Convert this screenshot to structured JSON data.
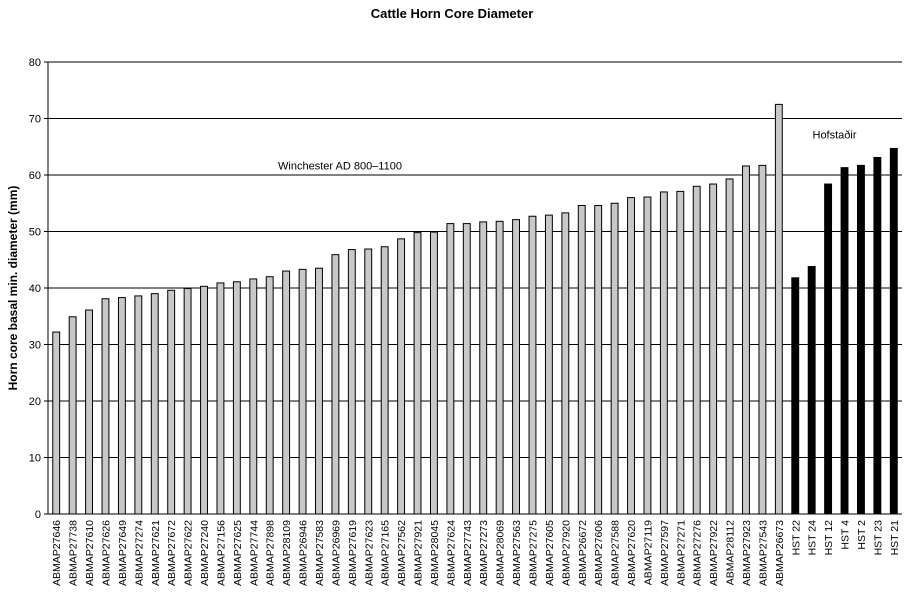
{
  "chart_data": {
    "type": "bar",
    "title": "Cattle Horn Core Diameter",
    "xlabel": "",
    "ylabel": "Horn core basal min. diameter (mm)",
    "ylim": [
      0,
      80
    ],
    "yticks": [
      0,
      10,
      20,
      30,
      40,
      50,
      60,
      70,
      80
    ],
    "grid": true,
    "annotations": [
      {
        "text": "Winchester AD 800–1100"
      },
      {
        "text": "Hofstaðir"
      }
    ],
    "groups": [
      {
        "label": "Winchester AD 800–1100",
        "color": "#c8c8c8",
        "categories": [
          "ABMAP27646",
          "ABMAP27738",
          "ABMAP27610",
          "ABMAP27626",
          "ABMAP27649",
          "ABMAP27274",
          "ABMAP27621",
          "ABMAP27672",
          "ABMAP27622",
          "ABMAP27240",
          "ABMAP27156",
          "ABMAP27625",
          "ABMAP27744",
          "ABMAP27898",
          "ABMAP28109",
          "ABMAP26946",
          "ABMAP27583",
          "ABMAP26969",
          "ABMAP27619",
          "ABMAP27623",
          "ABMAP27165",
          "ABMAP27562",
          "ABMAP27921",
          "ABMAP28045",
          "ABMAP27624",
          "ABMAP27743",
          "ABMAP27273",
          "ABMAP28069",
          "ABMAP27563",
          "ABMAP27275",
          "ABMAP27605",
          "ABMAP27920",
          "ABMAP26672",
          "ABMAP27606",
          "ABMAP27588",
          "ABMAP27620",
          "ABMAP27119",
          "ABMAP27597",
          "ABMAP27271",
          "ABMAP27276",
          "ABMAP27922",
          "ABMAP28112",
          "ABMAP27923",
          "ABMAP27543",
          "ABMAP26673"
        ],
        "values": [
          32.2,
          34.9,
          36.1,
          38.1,
          38.3,
          38.6,
          39.0,
          39.6,
          39.9,
          40.3,
          40.9,
          41.1,
          41.6,
          42.0,
          43.0,
          43.3,
          43.5,
          45.9,
          46.8,
          46.9,
          47.3,
          48.7,
          49.8,
          49.9,
          51.4,
          51.4,
          51.7,
          51.8,
          52.1,
          52.7,
          52.9,
          53.3,
          54.6,
          54.6,
          55.0,
          56.0,
          56.1,
          57.0,
          57.1,
          58.0,
          58.4,
          59.3,
          61.6,
          61.7,
          72.5
        ]
      },
      {
        "label": "Hofstaðir",
        "color": "#000000",
        "categories": [
          "HST 22",
          "HST 24",
          "HST 12",
          "HST 4",
          "HST 2",
          "HST 23",
          "HST 21"
        ],
        "values": [
          41.8,
          43.8,
          58.4,
          61.3,
          61.7,
          63.1,
          64.7
        ]
      }
    ]
  }
}
